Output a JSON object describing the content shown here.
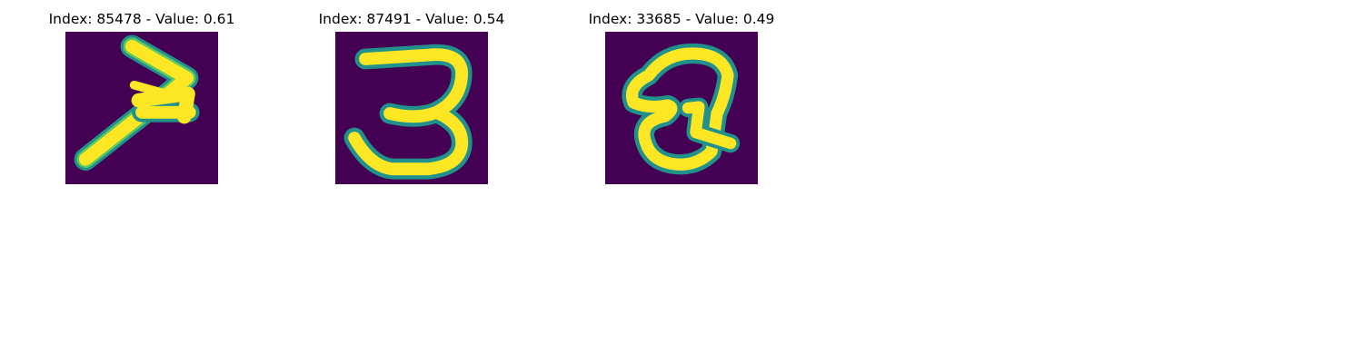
{
  "figure": {
    "panels": [
      {
        "title": "Index: 85478 - Value: 0.61",
        "index": 85478,
        "value": 0.61,
        "glyph": "handwritten-7"
      },
      {
        "title": "Index: 87491 - Value: 0.54",
        "index": 87491,
        "value": 0.54,
        "glyph": "handwritten-3"
      },
      {
        "title": "Index: 33685 - Value: 0.49",
        "index": 33685,
        "value": 0.49,
        "glyph": "handwritten-Q"
      }
    ],
    "colors": {
      "background": "#440154",
      "stroke_core": "#fde725",
      "stroke_edge": "#21918c",
      "stroke_mid": "#5ec962"
    }
  }
}
